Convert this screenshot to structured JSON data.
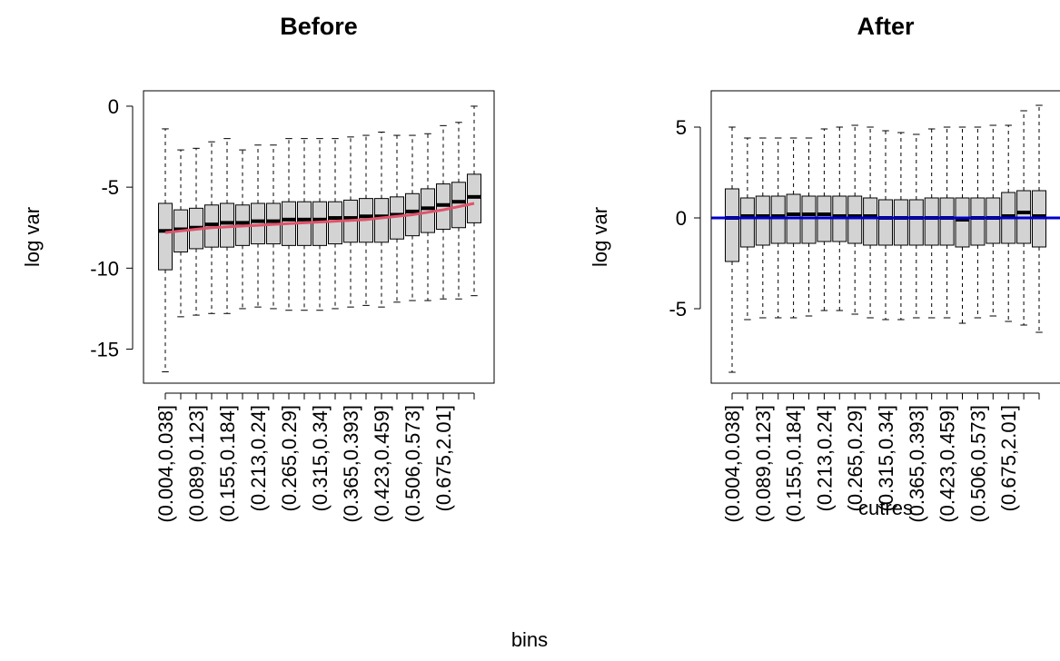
{
  "caption": "bins",
  "chart_data": [
    {
      "type": "box",
      "title": "Before",
      "ylabel": "log var",
      "categories": [
        "(0.004,0.038]",
        null,
        "(0.089,0.123]",
        null,
        "(0.155,0.184]",
        null,
        "(0.213,0.24]",
        null,
        "(0.265,0.29]",
        null,
        "(0.315,0.34]",
        null,
        "(0.365,0.393]",
        null,
        "(0.423,0.459]",
        null,
        "(0.506,0.573]",
        null,
        "(0.675,2.01]",
        null,
        null
      ],
      "whisker_low": [
        -16.4,
        -13.0,
        -12.9,
        -12.8,
        -12.8,
        -12.5,
        -12.4,
        -12.5,
        -12.6,
        -12.6,
        -12.6,
        -12.5,
        -12.4,
        -12.3,
        -12.4,
        -12.1,
        -12.0,
        -12.0,
        -11.9,
        -11.9,
        -11.7
      ],
      "q1": [
        -10.1,
        -9.0,
        -8.8,
        -8.7,
        -8.7,
        -8.6,
        -8.5,
        -8.5,
        -8.6,
        -8.6,
        -8.6,
        -8.5,
        -8.4,
        -8.4,
        -8.4,
        -8.2,
        -8.0,
        -7.8,
        -7.6,
        -7.5,
        -7.2
      ],
      "median": [
        -7.7,
        -7.6,
        -7.5,
        -7.3,
        -7.2,
        -7.2,
        -7.1,
        -7.1,
        -7.0,
        -7.0,
        -7.0,
        -6.9,
        -6.9,
        -6.8,
        -6.8,
        -6.7,
        -6.5,
        -6.3,
        -6.1,
        -5.9,
        -5.6
      ],
      "q3": [
        -6.0,
        -6.4,
        -6.3,
        -6.1,
        -6.0,
        -6.1,
        -6.0,
        -6.0,
        -5.9,
        -5.9,
        -5.9,
        -5.9,
        -5.8,
        -5.7,
        -5.7,
        -5.6,
        -5.4,
        -5.1,
        -4.8,
        -4.7,
        -4.2
      ],
      "whisker_high": [
        -1.4,
        -2.7,
        -2.6,
        -2.2,
        -2.0,
        -2.7,
        -2.4,
        -2.4,
        -2.0,
        -2.0,
        -2.0,
        -2.0,
        -1.9,
        -1.8,
        -1.6,
        -1.8,
        -1.8,
        -1.7,
        -1.2,
        -1.0,
        0.0
      ],
      "box_color": "#d3d3d3",
      "lines": [
        {
          "color": "#df536b",
          "values": [
            -7.8,
            -7.7,
            -7.6,
            -7.5,
            -7.45,
            -7.4,
            -7.35,
            -7.3,
            -7.25,
            -7.2,
            -7.15,
            -7.1,
            -7.05,
            -7.0,
            -6.9,
            -6.8,
            -6.7,
            -6.55,
            -6.4,
            -6.2,
            -6.0
          ]
        }
      ],
      "ylim": [
        -17.1,
        0.95
      ],
      "yticks": [
        -15,
        -10,
        -5,
        0
      ]
    },
    {
      "type": "box",
      "title": "After",
      "ylabel": "log var",
      "xlabel": "cutres",
      "categories": [
        "(0.004,0.038]",
        null,
        "(0.089,0.123]",
        null,
        "(0.155,0.184]",
        null,
        "(0.213,0.24]",
        null,
        "(0.265,0.29]",
        null,
        "(0.315,0.34]",
        null,
        "(0.365,0.393]",
        null,
        "(0.423,0.459]",
        null,
        "(0.506,0.573]",
        null,
        "(0.675,2.01]",
        null,
        null
      ],
      "whisker_low": [
        -8.5,
        -5.6,
        -5.5,
        -5.5,
        -5.5,
        -5.4,
        -5.1,
        -5.1,
        -5.3,
        -5.5,
        -5.6,
        -5.6,
        -5.5,
        -5.5,
        -5.5,
        -5.8,
        -5.5,
        -5.4,
        -5.7,
        -5.9,
        -6.3
      ],
      "q1": [
        -2.4,
        -1.6,
        -1.5,
        -1.4,
        -1.4,
        -1.4,
        -1.3,
        -1.3,
        -1.4,
        -1.5,
        -1.5,
        -1.5,
        -1.5,
        -1.5,
        -1.5,
        -1.6,
        -1.5,
        -1.4,
        -1.4,
        -1.4,
        -1.6
      ],
      "median": [
        0.0,
        0.1,
        0.1,
        0.1,
        0.2,
        0.2,
        0.2,
        0.1,
        0.1,
        0.1,
        0.0,
        0.0,
        0.0,
        0.0,
        0.0,
        -0.1,
        0.0,
        0.0,
        0.1,
        0.3,
        0.1
      ],
      "q3": [
        1.6,
        1.1,
        1.2,
        1.2,
        1.3,
        1.2,
        1.2,
        1.2,
        1.2,
        1.1,
        1.0,
        1.0,
        1.0,
        1.1,
        1.1,
        1.1,
        1.1,
        1.1,
        1.4,
        1.5,
        1.5
      ],
      "whisker_high": [
        5.0,
        4.4,
        4.4,
        4.4,
        4.4,
        4.4,
        4.9,
        5.0,
        5.1,
        5.0,
        4.8,
        4.7,
        4.6,
        4.9,
        5.0,
        5.0,
        5.0,
        5.1,
        5.1,
        5.9,
        6.2
      ],
      "box_color": "#d3d3d3",
      "hline": {
        "value": 0,
        "color": "#0000cd"
      },
      "ylim": [
        -9.1,
        7.0
      ],
      "yticks": [
        -5,
        0,
        5
      ]
    }
  ]
}
